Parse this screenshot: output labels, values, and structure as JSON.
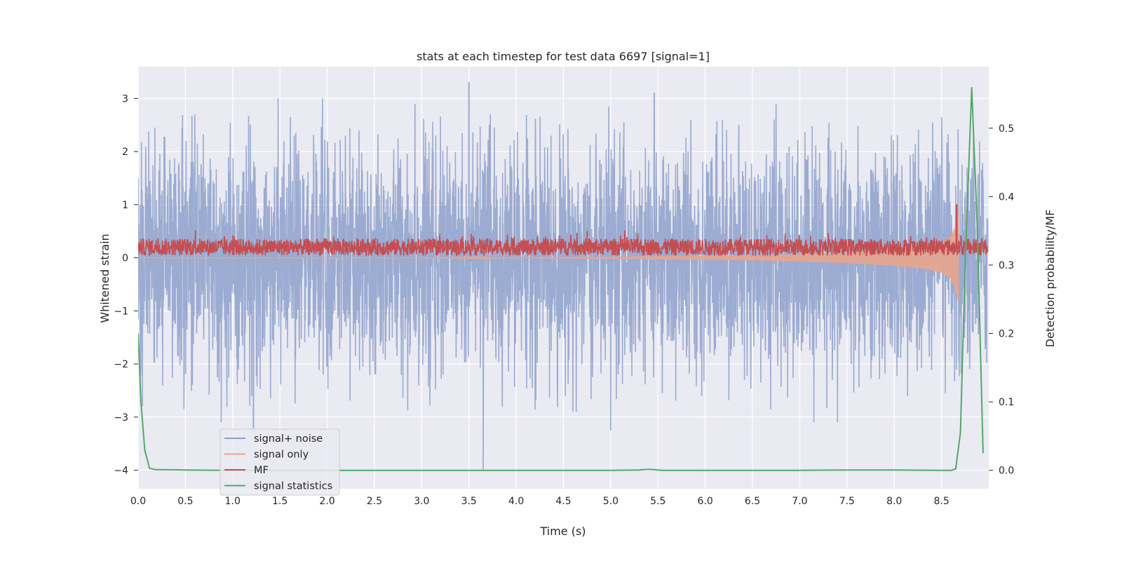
{
  "chart_data": {
    "type": "line",
    "title": "stats at each timestep for test data 6697 [signal=1]",
    "xlabel": "Time (s)",
    "ylabel": "Whitened strain",
    "y2label": "Detection probability/MF",
    "xlim": [
      0,
      9.0
    ],
    "ylim": [
      -4.35,
      3.6
    ],
    "y2lim": [
      -0.027,
      0.59
    ],
    "xticks": [
      "0.0",
      "0.5",
      "1.0",
      "1.5",
      "2.0",
      "2.5",
      "3.0",
      "3.5",
      "4.0",
      "4.5",
      "5.0",
      "5.5",
      "6.0",
      "6.5",
      "7.0",
      "7.5",
      "8.0",
      "8.5"
    ],
    "yticks": [
      "3",
      "2",
      "1",
      "0",
      "−1",
      "−2",
      "−3",
      "−4"
    ],
    "y2ticks": [
      "0.5",
      "0.4",
      "0.3",
      "0.2",
      "0.1",
      "0.0"
    ],
    "grid": true,
    "legend_position": "lower-left",
    "series": [
      {
        "name": "signal+ noise",
        "axis": "left",
        "color": "#8da0cb",
        "description_range": [
          -4.0,
          3.3
        ],
        "peaks": [
          {
            "x": 0.6,
            "y": 2.7
          },
          {
            "x": 0.88,
            "y": 2.6
          },
          {
            "x": 1.48,
            "y": 3.0
          },
          {
            "x": 1.95,
            "y": 3.0
          },
          {
            "x": 2.93,
            "y": 2.9
          },
          {
            "x": 3.5,
            "y": 3.3
          },
          {
            "x": 5.46,
            "y": 3.1
          },
          {
            "x": 4.98,
            "y": 2.85
          },
          {
            "x": 6.75,
            "y": 2.9
          }
        ],
        "troughs": [
          {
            "x": 0.88,
            "y": -3.1
          },
          {
            "x": 1.22,
            "y": -3.2
          },
          {
            "x": 3.65,
            "y": -4.0
          },
          {
            "x": 5.0,
            "y": -3.25
          },
          {
            "x": 7.15,
            "y": -3.1
          },
          {
            "x": 7.4,
            "y": -3.1
          }
        ]
      },
      {
        "name": "signal only",
        "axis": "left",
        "color": "#e8a48c",
        "envelope_x": [
          0,
          1,
          2,
          3,
          4,
          5,
          5.5,
          6,
          6.5,
          7,
          7.5,
          8,
          8.3,
          8.5,
          8.6,
          8.65,
          8.68
        ],
        "envelope_y": [
          0.0,
          0.0,
          0.0,
          0.0,
          0.01,
          0.02,
          0.03,
          0.04,
          0.05,
          0.07,
          0.1,
          0.15,
          0.2,
          0.28,
          0.4,
          0.6,
          0.85
        ]
      },
      {
        "name": "MF",
        "axis": "left",
        "color": "#c44e52",
        "baseline": 0.2,
        "spike": {
          "x": 8.66,
          "y": 1.0
        }
      },
      {
        "name": "signal statistics",
        "axis": "right",
        "color": "#55a868",
        "x": [
          0.0,
          0.03,
          0.07,
          0.12,
          0.18,
          0.25,
          0.5,
          1.0,
          2.0,
          3.0,
          4.0,
          5.0,
          5.3,
          5.4,
          5.45,
          5.55,
          6.0,
          7.0,
          7.5,
          8.0,
          8.5,
          8.6,
          8.65,
          8.7,
          8.75,
          8.82,
          8.88,
          8.94
        ],
        "y": [
          0.2,
          0.1,
          0.03,
          0.003,
          0.001,
          0.001,
          0.0005,
          0.0,
          0.0,
          0.0,
          0.0,
          0.0,
          0.0005,
          0.0015,
          0.001,
          0.0,
          0.0,
          0.0,
          0.0005,
          0.0005,
          0.0,
          0.0,
          0.002,
          0.055,
          0.3,
          0.56,
          0.35,
          0.025
        ]
      }
    ]
  }
}
